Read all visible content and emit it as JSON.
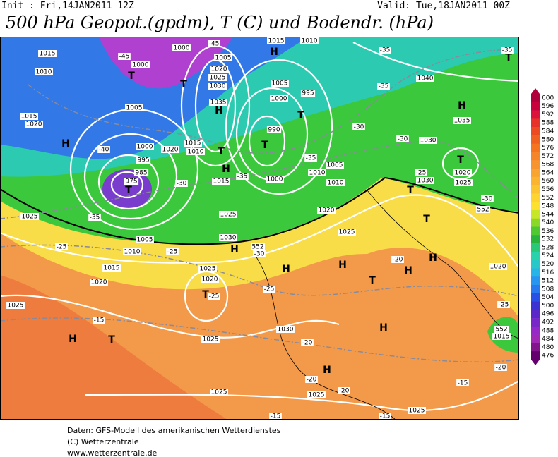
{
  "header": {
    "init": "Init : Fri,14JAN2011 12Z",
    "valid": "Valid: Tue,18JAN2011 00Z",
    "title": "500 hPa Geopot.(gpdm), T (C) und Bodendr. (hPa)"
  },
  "map": {
    "labels": [
      "1015",
      "1010",
      "1015",
      "1020",
      "H",
      "-45",
      "1000",
      "T",
      "1005",
      "-40",
      "995",
      "985",
      "975",
      "T",
      "1000",
      "-35",
      "1005",
      "1010",
      "1015",
      "1020",
      "1025",
      "-15",
      "H",
      "T",
      "-25",
      "1000",
      "-45",
      "1005",
      "1020",
      "1025",
      "1030",
      "1035",
      "H",
      "T",
      "1015",
      "1010",
      "1020",
      "T",
      "H",
      "1015",
      "1025",
      "-30",
      "1030",
      "H",
      "-25",
      "552",
      "1025",
      "1020",
      "T",
      "-25",
      "1025",
      "H",
      "1015",
      "1010",
      "1005",
      "995",
      "1000",
      "T",
      "990",
      "T",
      "-35",
      "1000",
      "-35",
      "1005",
      "1010",
      "1010",
      "1020",
      "1025",
      "-30",
      "H",
      "H",
      "-25",
      "1030",
      "-20",
      "H",
      "H",
      "-20",
      "1025",
      "-20",
      "1025",
      "-15",
      "T",
      "-20",
      "T",
      "H",
      "H",
      "1030",
      "T",
      "-25",
      "1030",
      "-30",
      "-30",
      "-35",
      "1040",
      "-35",
      "H",
      "1035",
      "T",
      "1020",
      "1025",
      "-30",
      "552",
      "1020",
      "-25",
      "552",
      "1015",
      "-20",
      "-15",
      "1025",
      "-15",
      "T",
      "-35",
      "1025"
    ]
  },
  "colorbar": {
    "values": [
      600,
      596,
      592,
      588,
      584,
      580,
      576,
      572,
      568,
      564,
      560,
      556,
      552,
      548,
      544,
      540,
      536,
      532,
      528,
      524,
      520,
      516,
      512,
      508,
      504,
      500,
      496,
      492,
      488,
      484,
      480,
      476
    ],
    "colors": [
      "#b0003c",
      "#c8003c",
      "#dc143c",
      "#e63228",
      "#ec4a20",
      "#f06020",
      "#f47420",
      "#f68428",
      "#f89430",
      "#faa430",
      "#fbb430",
      "#fcc430",
      "#fdd430",
      "#fde030",
      "#c8e628",
      "#8cd828",
      "#50c832",
      "#28b43c",
      "#28c878",
      "#28d2aa",
      "#28c8c8",
      "#28b4e6",
      "#2896f0",
      "#2878f0",
      "#2850e6",
      "#3c32d2",
      "#5a28c8",
      "#7828c8",
      "#9628c8",
      "#a028b4",
      "#82148c",
      "#64006e"
    ]
  },
  "footer": {
    "lines": [
      "Daten: GFS-Modell des amerikanischen Wetterdienstes",
      "(C) Wetterzentrale",
      "www.wetterzentrale.de"
    ]
  }
}
